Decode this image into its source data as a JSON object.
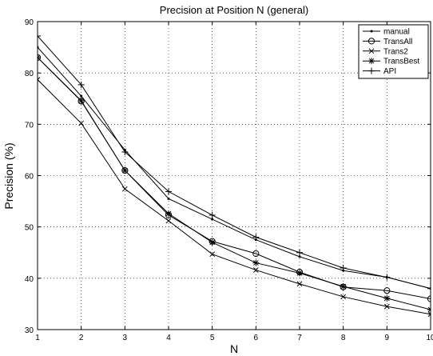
{
  "chart_data": {
    "type": "line",
    "title": "Precision at Position N (general)",
    "xlabel": "N",
    "ylabel": "Precision (%)",
    "xlim": [
      1,
      10
    ],
    "ylim": [
      30,
      90
    ],
    "x": [
      1,
      2,
      3,
      4,
      5,
      6,
      7,
      8,
      9,
      10
    ],
    "x_ticks": [
      "1",
      "2",
      "3",
      "4",
      "5",
      "6",
      "7",
      "8",
      "9",
      "10"
    ],
    "y_ticks": [
      "30",
      "40",
      "50",
      "60",
      "70",
      "80",
      "90"
    ],
    "grid": true,
    "legend_position": "top-right",
    "series": [
      {
        "name": "manual",
        "marker": "dot",
        "values": [
          85.0,
          75.5,
          65.0,
          55.5,
          51.5,
          47.5,
          44.2,
          41.5,
          40.2,
          38.0
        ]
      },
      {
        "name": "TransAll",
        "marker": "circle",
        "values": [
          83.0,
          74.5,
          61.0,
          52.3,
          47.2,
          44.8,
          41.2,
          38.3,
          37.6,
          36.0
        ]
      },
      {
        "name": "Trans2",
        "marker": "x",
        "values": [
          78.7,
          70.2,
          57.4,
          51.2,
          44.7,
          41.6,
          38.9,
          36.4,
          34.5,
          33.0
        ]
      },
      {
        "name": "TransBest",
        "marker": "star",
        "values": [
          83.0,
          74.6,
          61.0,
          52.6,
          47.0,
          43.0,
          41.0,
          38.4,
          36.1,
          33.9
        ]
      },
      {
        "name": "API",
        "marker": "plus",
        "values": [
          87.2,
          77.7,
          64.6,
          56.9,
          52.3,
          48.0,
          45.0,
          42.0,
          40.2,
          38.0
        ]
      }
    ]
  }
}
